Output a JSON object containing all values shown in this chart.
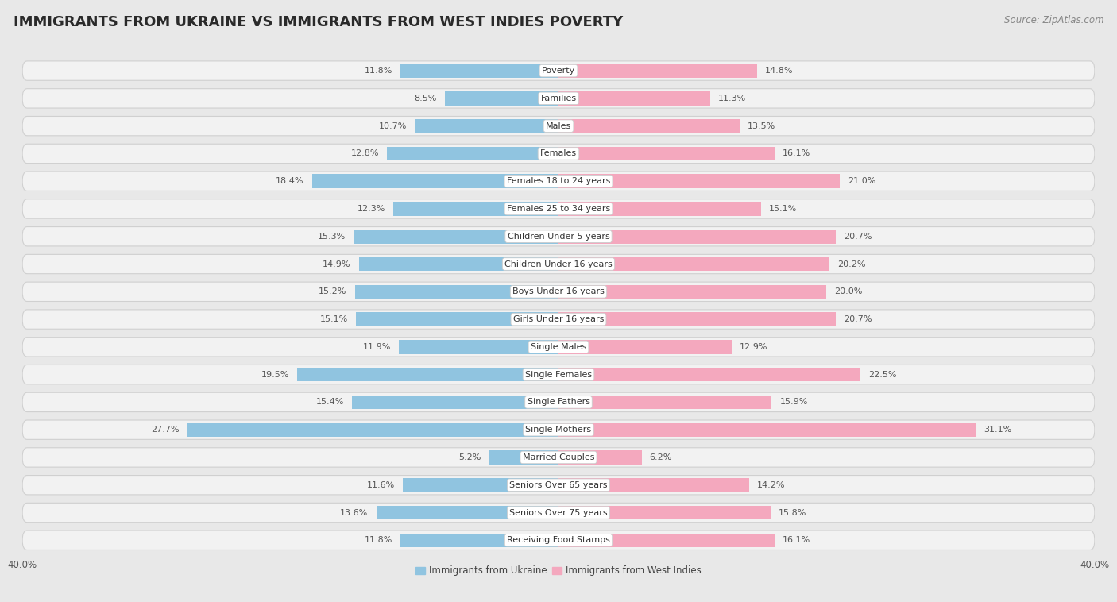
{
  "title": "IMMIGRANTS FROM UKRAINE VS IMMIGRANTS FROM WEST INDIES POVERTY",
  "source": "Source: ZipAtlas.com",
  "categories": [
    "Poverty",
    "Families",
    "Males",
    "Females",
    "Females 18 to 24 years",
    "Females 25 to 34 years",
    "Children Under 5 years",
    "Children Under 16 years",
    "Boys Under 16 years",
    "Girls Under 16 years",
    "Single Males",
    "Single Females",
    "Single Fathers",
    "Single Mothers",
    "Married Couples",
    "Seniors Over 65 years",
    "Seniors Over 75 years",
    "Receiving Food Stamps"
  ],
  "ukraine_values": [
    11.8,
    8.5,
    10.7,
    12.8,
    18.4,
    12.3,
    15.3,
    14.9,
    15.2,
    15.1,
    11.9,
    19.5,
    15.4,
    27.7,
    5.2,
    11.6,
    13.6,
    11.8
  ],
  "westindies_values": [
    14.8,
    11.3,
    13.5,
    16.1,
    21.0,
    15.1,
    20.7,
    20.2,
    20.0,
    20.7,
    12.9,
    22.5,
    15.9,
    31.1,
    6.2,
    14.2,
    15.8,
    16.1
  ],
  "ukraine_color": "#90c4e0",
  "westindies_color": "#f4a8be",
  "ukraine_label": "Immigrants from Ukraine",
  "westindies_label": "Immigrants from West Indies",
  "x_max": 40.0,
  "fig_bg": "#e8e8e8",
  "row_bg": "#ececec",
  "row_inner_bg": "#f5f5f5",
  "title_fontsize": 13,
  "source_fontsize": 8.5,
  "label_fontsize": 8,
  "value_fontsize": 8,
  "legend_fontsize": 8.5,
  "axis_fontsize": 8.5
}
